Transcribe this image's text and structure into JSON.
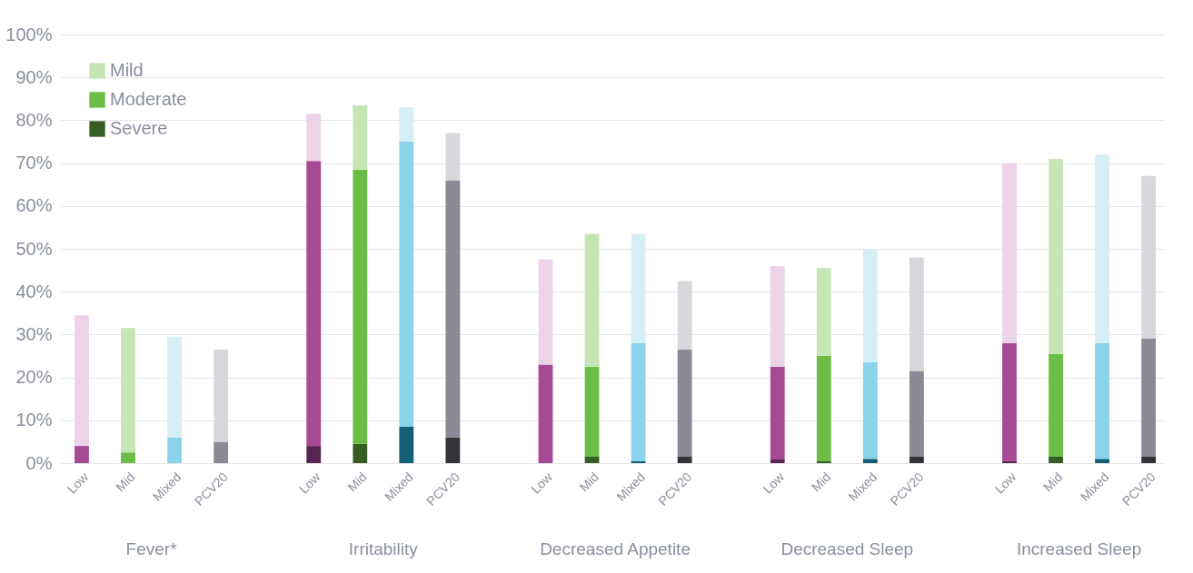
{
  "chart_data": {
    "type": "bar",
    "stacked": true,
    "categories": [
      "Low",
      "Mid",
      "Mixed",
      "PCV20",
      "Low",
      "Mid",
      "Mixed",
      "PCV20",
      "Low",
      "Mid",
      "Mixed",
      "PCV20",
      "Low",
      "Mid",
      "Mixed",
      "PCV20",
      "Low",
      "Mid",
      "Mixed",
      "PCV20"
    ],
    "annotations": [
      "Fever*",
      "Irritability",
      "Decreased Appetite",
      "Decreased Sleep",
      "Increased Sleep"
    ],
    "series": [
      {
        "name": "Severe",
        "color": "#375e22",
        "colors": [
          "#5a2452",
          "#375e22",
          "#145e78",
          "#333438",
          "#5a2452",
          "#375e22",
          "#145e78",
          "#333438",
          "#5a2452",
          "#375e22",
          "#145e78",
          "#333438",
          "#5a2452",
          "#375e22",
          "#145e78",
          "#333438",
          "#5a2452",
          "#375e22",
          "#145e78",
          "#333438"
        ],
        "values": [
          0,
          0,
          0,
          0,
          4,
          4.5,
          8.5,
          6,
          0,
          1.5,
          0.5,
          1.5,
          1,
          0.5,
          1,
          1.5,
          0.5,
          1.5,
          1,
          1.5
        ]
      },
      {
        "name": "Moderate",
        "color": "#6cbd45",
        "colors": [
          "#a64a96",
          "#6cbd45",
          "#8ad3ea",
          "#8a8a96",
          "#a64a96",
          "#6cbd45",
          "#8ad3ea",
          "#8a8a96",
          "#a64a96",
          "#6cbd45",
          "#8ad3ea",
          "#8a8a96",
          "#a64a96",
          "#6cbd45",
          "#8ad3ea",
          "#8a8a96",
          "#a64a96",
          "#6cbd45",
          "#8ad3ea",
          "#8a8a96"
        ],
        "values": [
          4,
          2.5,
          6,
          5,
          66.5,
          64,
          66.5,
          60,
          23,
          21,
          27.5,
          25,
          21.5,
          24.5,
          22.5,
          20,
          27.5,
          24,
          27,
          27.5
        ]
      },
      {
        "name": "Mild",
        "color": "#c5e5b4",
        "colors": [
          "#ebd3e8",
          "#c5e5b4",
          "#d6eef6",
          "#d8d8dc",
          "#ebd3e8",
          "#c5e5b4",
          "#d6eef6",
          "#d8d8dc",
          "#ebd3e8",
          "#c5e5b4",
          "#d6eef6",
          "#d8d8dc",
          "#ebd3e8",
          "#c5e5b4",
          "#d6eef6",
          "#d8d8dc",
          "#ebd3e8",
          "#c5e5b4",
          "#d6eef6",
          "#d8d8dc"
        ],
        "values": [
          30.5,
          29,
          23.5,
          21.5,
          11,
          15,
          8,
          11,
          24.5,
          31,
          25.5,
          16,
          23.5,
          20.5,
          26.5,
          26.5,
          42,
          45.5,
          44,
          38
        ]
      }
    ],
    "ylim": [
      0,
      100
    ],
    "yticks": [
      {
        "value": 0,
        "label": "0%"
      },
      {
        "value": 10,
        "label": "10%"
      },
      {
        "value": 20,
        "label": "20%"
      },
      {
        "value": 30,
        "label": "30%"
      },
      {
        "value": 40,
        "label": "40%"
      },
      {
        "value": 50,
        "label": "50%"
      },
      {
        "value": 60,
        "label": "60%"
      },
      {
        "value": 70,
        "label": "70%"
      },
      {
        "value": 80,
        "label": "80%"
      },
      {
        "value": 90,
        "label": "90%"
      },
      {
        "value": 100,
        "label": "100%"
      }
    ],
    "grid": "y",
    "legend": "top left"
  }
}
